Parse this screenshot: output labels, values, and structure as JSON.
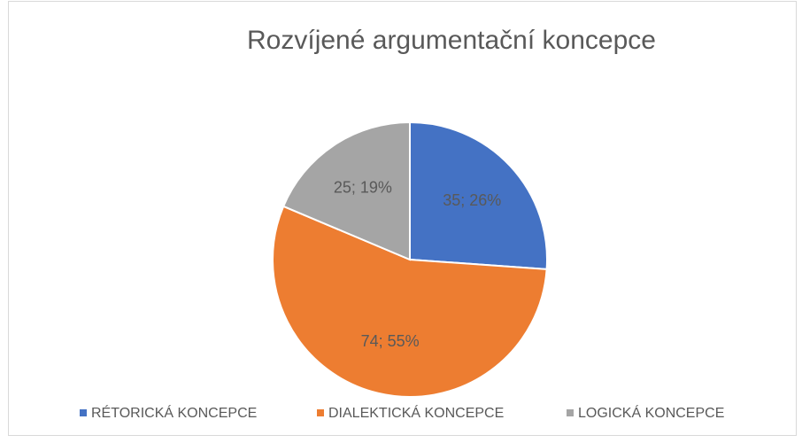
{
  "chart_data": {
    "type": "pie",
    "title": "Rozvíjené argumentační koncepce",
    "categories": [
      "RÉTORICKÁ KONCEPCE",
      "DIALEKTICKÁ KONCEPCE",
      "LOGICKÁ KONCEPCE"
    ],
    "values": [
      35,
      74,
      25
    ],
    "value_labels": [
      "35; 26%",
      "74; 55%",
      "25; 19%"
    ],
    "colors": [
      "#4472c4",
      "#ed7d31",
      "#a5a5a5"
    ],
    "legend": "bottom"
  }
}
